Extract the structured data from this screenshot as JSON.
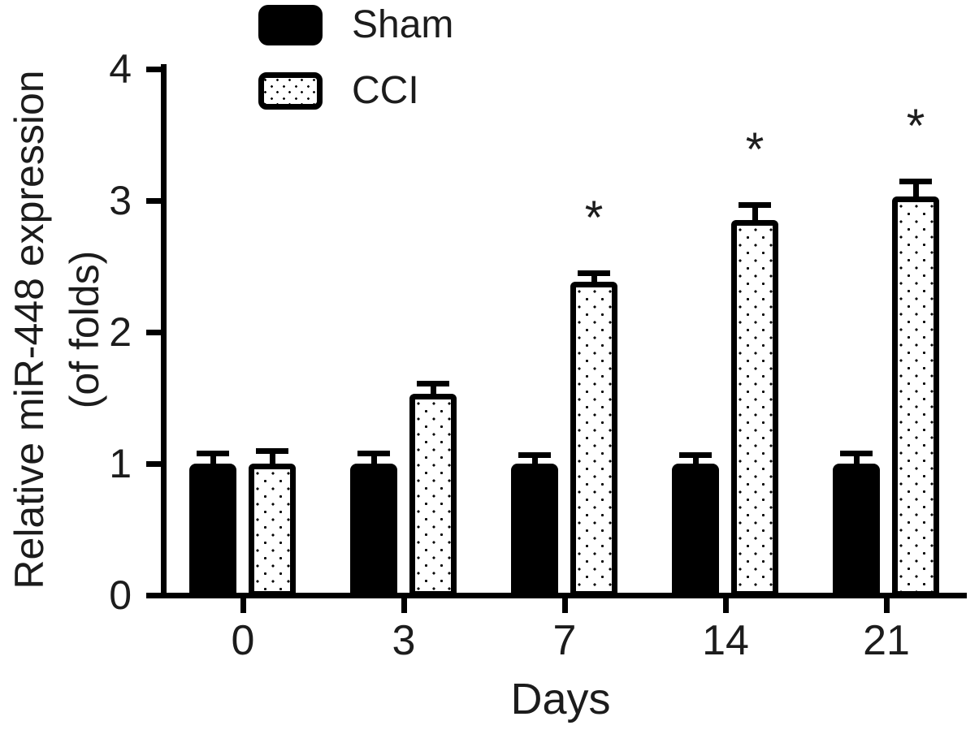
{
  "figure": {
    "background": "#ffffff",
    "ink_color": "#000000",
    "text_color": "#1c1c1c"
  },
  "chart_data": {
    "type": "bar",
    "title": "",
    "xlabel": "Days",
    "ylabel": "Relative miR-448 expression (of folds)",
    "ylabel_lines": [
      "Relative miR-448 expression",
      "(of folds)"
    ],
    "categories": [
      "0",
      "3",
      "7",
      "14",
      "21"
    ],
    "ylim": [
      0,
      4
    ],
    "yticks": [
      "0",
      "1",
      "2",
      "3",
      "4"
    ],
    "grid": false,
    "legend_position": "top-left",
    "error_bars": "mean + SEM, cap style T",
    "series": [
      {
        "name": "Sham",
        "style": "solid-black",
        "values": [
          1.0,
          1.0,
          1.0,
          1.0,
          1.0
        ],
        "errors": [
          0.08,
          0.08,
          0.07,
          0.07,
          0.08
        ],
        "significance": [
          "",
          "",
          "",
          "",
          ""
        ]
      },
      {
        "name": "CCI",
        "style": "white-stippled-black-border",
        "values": [
          1.0,
          1.53,
          2.38,
          2.85,
          3.03
        ],
        "errors": [
          0.1,
          0.08,
          0.07,
          0.12,
          0.12
        ],
        "significance": [
          "",
          "",
          "*",
          "*",
          "*"
        ]
      }
    ]
  }
}
